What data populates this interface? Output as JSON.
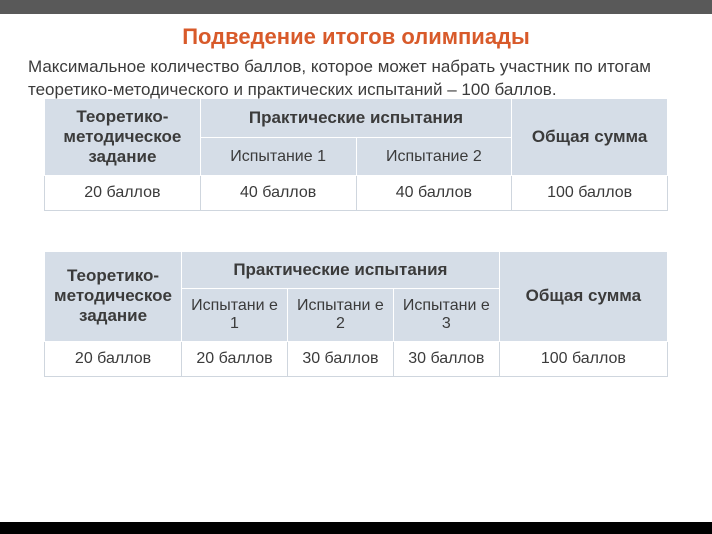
{
  "colors": {
    "topBar": "#595959",
    "title": "#d85a2a",
    "bodyText": "#3b3b3b",
    "headerBg": "#d5dde7",
    "subHeaderBg": "#d5dde7",
    "cellBorder": "#cfd6de",
    "headerBorder": "#ffffff"
  },
  "fonts": {
    "titleSize": 22,
    "introSize": 17,
    "tableHeaderSize": 17,
    "tableSubSize": 16,
    "tableDataSize": 16
  },
  "title": "Подведение итогов олимпиады",
  "intro": "Максимальное количество баллов, которое может набрать участник по итогам теоретико-методического и практических испытаний – 100 баллов.",
  "table1": {
    "col1": "Теоретико-методическое задание",
    "groupHeader": "Практические испытания",
    "sub1": "Испытание 1",
    "sub2": "Испытание 2",
    "colTotal": "Общая сумма",
    "row": {
      "c1": "20 баллов",
      "c2": "40 баллов",
      "c3": "40 баллов",
      "c4": "100 баллов"
    },
    "colWidths": [
      "25%",
      "25%",
      "25%",
      "25%"
    ]
  },
  "table2": {
    "col1": "Теоретико-методическое задание",
    "groupHeader": "Практические испытания",
    "sub1": "Испытани\nе 1",
    "sub2": "Испытани\nе 2",
    "sub3": "Испытани\nе 3",
    "colTotal": "Общая сумма",
    "row": {
      "c1": "20 баллов",
      "c2": "20 баллов",
      "c3": "30 баллов",
      "c4": "30 баллов",
      "c5": "100 баллов"
    },
    "colWidths": [
      "22%",
      "17%",
      "17%",
      "17%",
      "27%"
    ]
  }
}
